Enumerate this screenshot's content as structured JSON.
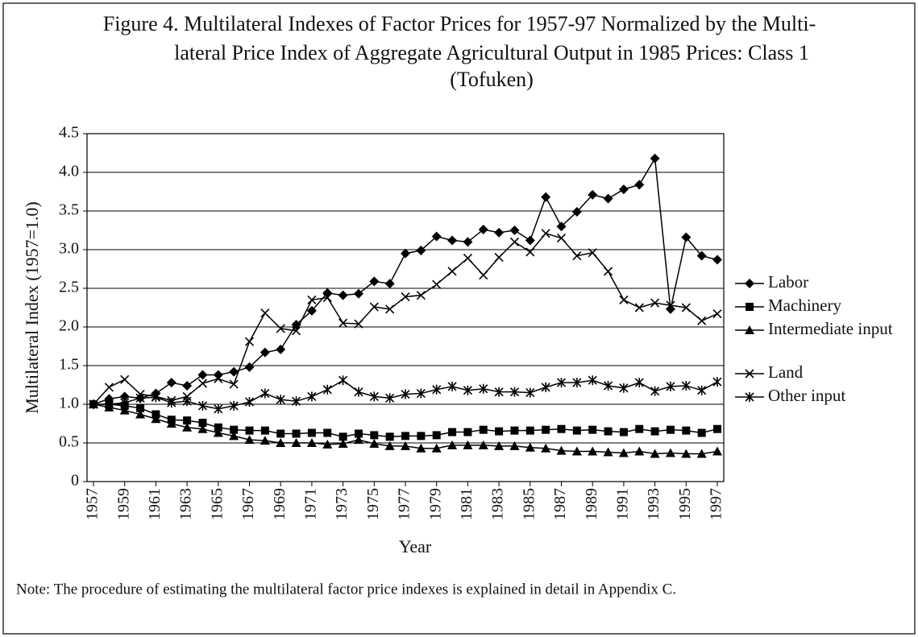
{
  "chart_data": {
    "type": "line",
    "title": [
      "Figure 4. Multilateral Indexes of Factor Prices for 1957-97 Normalized by the Multi-",
      "lateral Price Index of Aggregate Agricultural Output in 1985 Prices: Class 1",
      "(Tofuken)"
    ],
    "x_label": "Year",
    "y_label": "Multilateral Index (1957=1.0)",
    "note": "Note: The procedure of estimating the multilateral factor price indexes is explained in detail in Appendix C.",
    "x": [
      1957,
      1958,
      1959,
      1960,
      1961,
      1962,
      1963,
      1964,
      1965,
      1966,
      1967,
      1968,
      1969,
      1970,
      1971,
      1972,
      1973,
      1974,
      1975,
      1976,
      1977,
      1978,
      1979,
      1980,
      1981,
      1982,
      1983,
      1984,
      1985,
      1986,
      1987,
      1988,
      1989,
      1990,
      1991,
      1992,
      1993,
      1994,
      1995,
      1996,
      1997
    ],
    "xlim": [
      1957,
      1997
    ],
    "xticks": [
      1957,
      1959,
      1961,
      1963,
      1965,
      1967,
      1969,
      1971,
      1973,
      1975,
      1977,
      1979,
      1981,
      1983,
      1985,
      1987,
      1989,
      1991,
      1993,
      1995,
      1997
    ],
    "ylim": [
      0,
      4.5
    ],
    "yticks": [
      0,
      0.5,
      {
        "value": 1,
        "label": "1.0"
      },
      1.5,
      {
        "value": 2,
        "label": "2.0"
      },
      2.5,
      {
        "value": 3,
        "label": "3.0"
      },
      3.5,
      {
        "value": 4,
        "label": "4.0"
      },
      4.5
    ],
    "grid": true,
    "legend": "right",
    "series": [
      {
        "name": "Labor",
        "color": "#000000",
        "marker": "diamond",
        "values": [
          1.0,
          1.07,
          1.1,
          1.08,
          1.14,
          1.28,
          1.24,
          1.38,
          1.38,
          1.42,
          1.48,
          1.67,
          1.71,
          2.03,
          2.21,
          2.44,
          2.41,
          2.43,
          2.59,
          2.56,
          2.95,
          2.99,
          3.17,
          3.12,
          3.1,
          3.26,
          3.22,
          3.25,
          3.12,
          3.68,
          3.3,
          3.49,
          3.71,
          3.66,
          3.78,
          3.84,
          4.18,
          2.23,
          3.16,
          2.92,
          2.87
        ]
      },
      {
        "name": "Machinery",
        "color": "#000000",
        "marker": "square",
        "values": [
          1.0,
          1.0,
          0.98,
          0.95,
          0.87,
          0.8,
          0.79,
          0.76,
          0.7,
          0.67,
          0.66,
          0.66,
          0.62,
          0.62,
          0.63,
          0.63,
          0.58,
          0.62,
          0.6,
          0.58,
          0.59,
          0.59,
          0.6,
          0.64,
          0.64,
          0.67,
          0.65,
          0.66,
          0.66,
          0.67,
          0.68,
          0.66,
          0.67,
          0.65,
          0.64,
          0.68,
          0.65,
          0.67,
          0.66,
          0.63,
          0.68
        ]
      },
      {
        "name": "Intermediate input",
        "color": "#000000",
        "marker": "triangle",
        "values": [
          1.0,
          0.96,
          0.92,
          0.87,
          0.81,
          0.75,
          0.7,
          0.68,
          0.63,
          0.59,
          0.54,
          0.53,
          0.5,
          0.5,
          0.5,
          0.48,
          0.49,
          0.54,
          0.49,
          0.46,
          0.46,
          0.43,
          0.43,
          0.47,
          0.47,
          0.47,
          0.46,
          0.46,
          0.44,
          0.43,
          0.4,
          0.39,
          0.39,
          0.38,
          0.37,
          0.39,
          0.36,
          0.37,
          0.36,
          0.36,
          0.39
        ]
      },
      {
        "name": "Land",
        "color": "#000000",
        "marker": "x",
        "values": [
          1.0,
          1.22,
          1.32,
          1.13,
          1.1,
          1.05,
          1.1,
          1.27,
          1.33,
          1.26,
          1.81,
          2.18,
          1.98,
          1.95,
          2.35,
          2.38,
          2.05,
          2.04,
          2.26,
          2.23,
          2.39,
          2.41,
          2.55,
          2.72,
          2.89,
          2.67,
          2.9,
          3.1,
          2.97,
          3.21,
          3.15,
          2.92,
          2.96,
          2.72,
          2.35,
          2.25,
          2.31,
          2.28,
          2.25,
          2.08,
          2.17
        ]
      },
      {
        "name": "Other input",
        "color": "#000000",
        "marker": "asterisk",
        "values": [
          1.0,
          1.0,
          1.02,
          1.08,
          1.09,
          1.02,
          1.04,
          0.98,
          0.94,
          0.98,
          1.03,
          1.14,
          1.06,
          1.04,
          1.1,
          1.19,
          1.31,
          1.16,
          1.1,
          1.08,
          1.13,
          1.14,
          1.19,
          1.23,
          1.18,
          1.2,
          1.16,
          1.16,
          1.15,
          1.22,
          1.28,
          1.28,
          1.31,
          1.24,
          1.21,
          1.28,
          1.17,
          1.23,
          1.24,
          1.18,
          1.29
        ]
      }
    ]
  }
}
